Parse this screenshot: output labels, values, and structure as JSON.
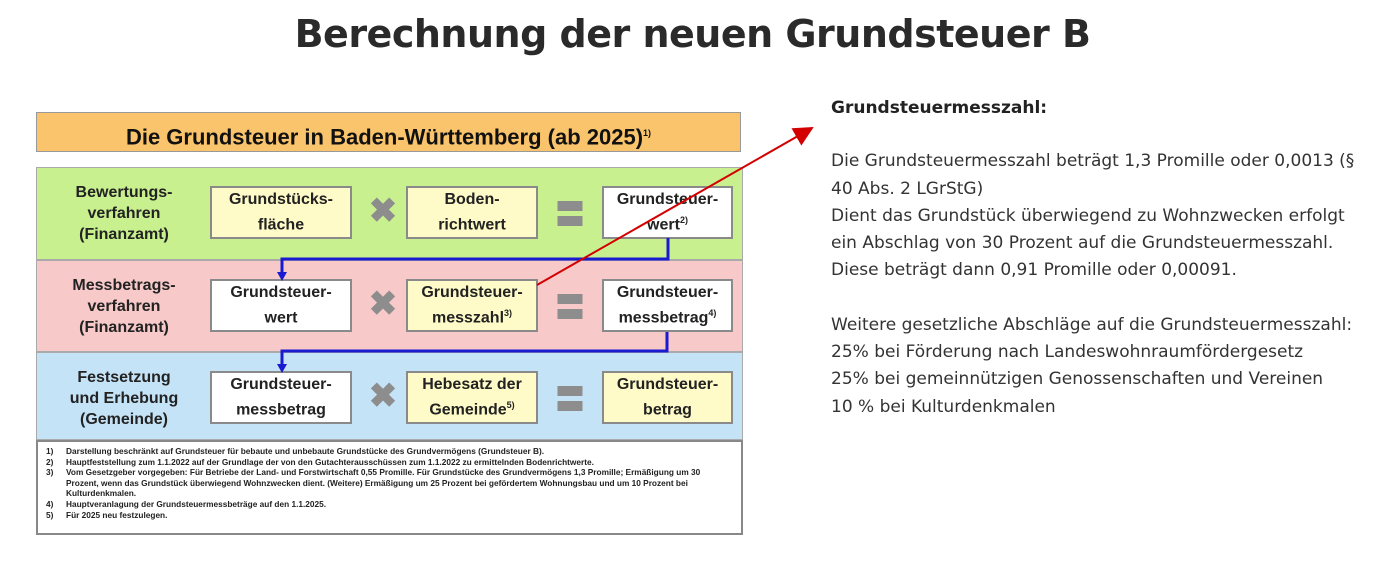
{
  "title": "Berechnung der neuen Grundsteuer B",
  "diagram": {
    "header": "Die Grundsteuer in Baden-Württemberg (ab 2025)",
    "header_sup": "1)",
    "rows": [
      {
        "label": "Bewertungs-\nverfahren\n(Finanzamt)",
        "color": "#c9f08f",
        "a": "Grundstücks-\nfläche",
        "a_sup": "",
        "b": "Boden-\nrichtwert",
        "b_sup": "",
        "c": "Grundsteuer-\nwert",
        "c_sup": "2)"
      },
      {
        "label": "Messbetrags-\nverfahren\n(Finanzamt)",
        "color": "#f7c9c9",
        "a": "Grundsteuer-\nwert",
        "a_sup": "",
        "b": "Grundsteuer-\nmesszahl",
        "b_sup": "3)",
        "c": "Grundsteuer-\nmessbetrag",
        "c_sup": "4)"
      },
      {
        "label": "Festsetzung\nund Erhebung\n(Gemeinde)",
        "color": "#c5e3f7",
        "a": "Grundsteuer-\nmessbetrag",
        "a_sup": "",
        "b": "Hebesatz der\nGemeinde",
        "b_sup": "5)",
        "c": "Grundsteuer-\nbetrag",
        "c_sup": ""
      }
    ],
    "multiply_symbol": "✖",
    "equals_symbol": "〓",
    "footnotes": [
      {
        "n": "1)",
        "t": "Darstellung beschränkt auf Grundsteuer für bebaute und unbebaute Grundstücke des Grundvermögens (Grundsteuer B)."
      },
      {
        "n": "2)",
        "t": "Hauptfeststellung zum 1.1.2022 auf der Grundlage der von den Gutachterausschüssen zum 1.1.2022 zu ermittelnden Bodenrichtwerte."
      },
      {
        "n": "3)",
        "t": "Vom Gesetzgeber vorgegeben: Für Betriebe der Land- und Forstwirtschaft 0,55 Promille. Für Grundstücke des Grundvermögens 1,3 Promille; Ermäßigung um 30 Prozent, wenn das Grundstück überwiegend Wohnzwecken dient. (Weitere) Ermäßigung um 25 Prozent bei gefördertem Wohnungsbau und um 10 Prozent bei Kulturdenkmalen."
      },
      {
        "n": "4)",
        "t": "Hauptveranlagung der Grundsteuermessbeträge auf den 1.1.2025."
      },
      {
        "n": "5)",
        "t": "Für 2025 neu festzulegen."
      }
    ]
  },
  "right": {
    "heading": "Grundsteuermesszahl:",
    "p1": "Die Grundsteuermesszahl beträgt 1,3 Promille oder 0,0013 (§ 40 Abs. 2 LGrStG)\nDient das Grundstück überwiegend zu Wohnzwecken erfolgt ein Abschlag von 30 Prozent auf die Grundsteuermesszahl. Diese beträgt dann 0,91 Promille oder 0,00091.",
    "p2": "Weitere gesetzliche Abschläge auf die Grundsteuermesszahl:\n25% bei Förderung nach Landeswohnraumfördergesetz\n25% bei gemeinnützigen Genossenschaften und Vereinen\n10 % bei Kulturdenkmalen"
  },
  "colors": {
    "arrow": "#d40000",
    "connector": "#1a1ad0",
    "header": "#f9c46b"
  }
}
